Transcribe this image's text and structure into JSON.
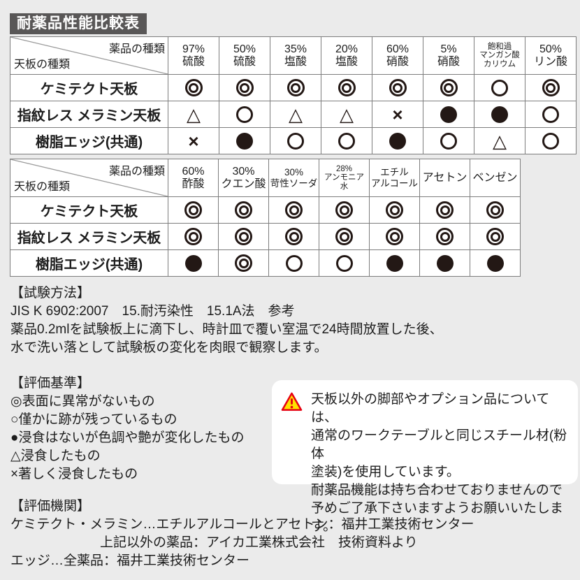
{
  "page": {
    "title": "耐薬品性能比較表"
  },
  "tables": [
    {
      "corner": {
        "top_right": "薬品の種類",
        "bottom_left": "天板の種類"
      },
      "columns": [
        "97%\n硫酸",
        "50%\n硫酸",
        "35%\n塩酸",
        "20%\n塩酸",
        "60%\n硝酸",
        "5%\n硝酸",
        "飽和過\nマンガン酸\nカリウム",
        "50%\nリン酸"
      ],
      "rows": [
        {
          "label": "ケミテクト天板",
          "values": [
            "◎",
            "◎",
            "◎",
            "◎",
            "◎",
            "◎",
            "○",
            "◎"
          ]
        },
        {
          "label": "指紋レス メラミン天板",
          "values": [
            "△",
            "○",
            "△",
            "△",
            "×",
            "●",
            "●",
            "○"
          ]
        },
        {
          "label": "樹脂エッジ(共通)",
          "values": [
            "×",
            "●",
            "○",
            "○",
            "●",
            "○",
            "△",
            "○"
          ]
        }
      ]
    },
    {
      "corner": {
        "top_right": "薬品の種類",
        "bottom_left": "天板の種類"
      },
      "columns": [
        "60%\n酢酸",
        "30%\nクエン酸",
        "30%\n苛性ソーダ",
        "28%\nアンモニア\n水",
        "エチル\nアルコール",
        "アセトン",
        "ベンゼン"
      ],
      "rows": [
        {
          "label": "ケミテクト天板",
          "values": [
            "◎",
            "◎",
            "◎",
            "◎",
            "◎",
            "◎",
            "◎"
          ]
        },
        {
          "label": "指紋レス メラミン天板",
          "values": [
            "◎",
            "◎",
            "◎",
            "◎",
            "◎",
            "◎",
            "◎"
          ]
        },
        {
          "label": "樹脂エッジ(共通)",
          "values": [
            "●",
            "◎",
            "○",
            "○",
            "●",
            "●",
            "●"
          ]
        }
      ]
    }
  ],
  "test_method": {
    "heading": "【試験方法】",
    "lines": [
      "JIS K 6902:2007　15.耐汚染性　15.1A法　参考",
      "薬品0.2mlを試験板上に滴下し、時計皿で覆い室温で24時間放置した後、",
      "水で洗い落として試験板の変化を肉眼で観察します。"
    ]
  },
  "criteria": {
    "heading": "【評価基準】",
    "lines": [
      "◎表面に異常がないもの",
      "○僅かに跡が残っているもの",
      "●浸食はないが色調や艶が変化したもの",
      "△浸食したもの",
      "×著しく浸食したもの"
    ]
  },
  "note": {
    "icon": "warning-triangle-icon",
    "lines": [
      "天板以外の脚部やオプション品については、",
      "通常のワークテーブルと同じスチール材(粉体",
      "塗装)を使用しています。",
      "耐薬品機能は持ち合わせておりませんので",
      "予めご了承下さいますようお願いいたします。"
    ]
  },
  "organizations": {
    "heading": "【評価機関】",
    "lines": [
      "ケミテクト・メラミン…エチルアルコールとアセトン：福井工業技術センター",
      "上記以外の薬品：アイカ工業株式会社　技術資料より",
      "エッジ…全薬品：福井工業技術センター"
    ]
  },
  "colors": {
    "background": "#ebebeb",
    "title_bg": "#595757",
    "title_text": "#ffffff",
    "table_border": "#7d7d7d",
    "symbol": "#231815",
    "warning_red": "#e60012",
    "warning_yellow": "#ffe100"
  }
}
